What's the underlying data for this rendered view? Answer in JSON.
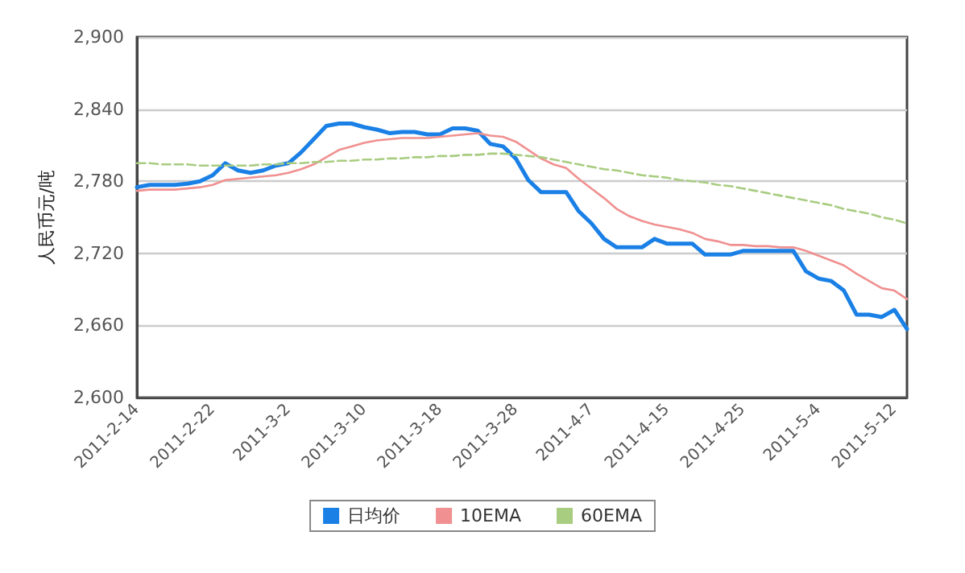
{
  "chart_data": {
    "type": "line",
    "ylabel": "人民币元/吨",
    "categories": [
      "2011-2-14",
      null,
      null,
      null,
      null,
      null,
      "2011-2-22",
      null,
      null,
      null,
      null,
      null,
      "2011-3-2",
      null,
      null,
      null,
      null,
      null,
      "2011-3-10",
      null,
      null,
      null,
      null,
      null,
      "2011-3-18",
      null,
      null,
      null,
      null,
      null,
      "2011-3-28",
      null,
      null,
      null,
      null,
      null,
      "2011-4-7",
      null,
      null,
      null,
      null,
      null,
      "2011-4-15",
      null,
      null,
      null,
      null,
      null,
      "2011-4-25",
      null,
      null,
      null,
      null,
      null,
      "2011-5-4",
      null,
      null,
      null,
      null,
      null,
      "2011-5-12",
      null
    ],
    "series": [
      {
        "name": "日均价",
        "color": "#1a80e6",
        "values": [
          2775,
          2777,
          2777,
          2777,
          2778,
          2780,
          2785,
          2795,
          2789,
          2787,
          2789,
          2793,
          2795,
          2804,
          2815,
          2826,
          2828,
          2828,
          2825,
          2823,
          2820,
          2821,
          2821,
          2819,
          2819,
          2824,
          2824,
          2822,
          2811,
          2809,
          2799,
          2781,
          2771,
          2771,
          2771,
          2755,
          2745,
          2732,
          2725,
          2725,
          2725,
          2732,
          2728,
          2728,
          2728,
          2719,
          2719,
          2719,
          2722,
          2722,
          2722,
          2722,
          2722,
          2705,
          2699,
          2697,
          2689,
          2669,
          2669,
          2667,
          2673,
          2657
        ]
      },
      {
        "name": "10EMA",
        "color": "#f09090",
        "values": [
          2772,
          2773,
          2773,
          2773,
          2774,
          2775,
          2777,
          2781,
          2782,
          2783,
          2784,
          2785,
          2787,
          2790,
          2794,
          2800,
          2806,
          2809,
          2812,
          2814,
          2815,
          2816,
          2816,
          2816,
          2817,
          2818,
          2819,
          2820,
          2818,
          2817,
          2813,
          2806,
          2799,
          2794,
          2791,
          2782,
          2774,
          2766,
          2757,
          2751,
          2747,
          2744,
          2742,
          2740,
          2737,
          2732,
          2730,
          2727,
          2727,
          2726,
          2726,
          2725,
          2725,
          2722,
          2718,
          2714,
          2710,
          2703,
          2697,
          2691,
          2689,
          2682
        ]
      },
      {
        "name": "60EMA",
        "color": "#a8cc80",
        "line_style": "dashed",
        "values": [
          2795,
          2795,
          2794,
          2794,
          2794,
          2793,
          2793,
          2793,
          2793,
          2793,
          2794,
          2794,
          2795,
          2795,
          2796,
          2796,
          2797,
          2797,
          2798,
          2798,
          2799,
          2799,
          2800,
          2800,
          2801,
          2801,
          2802,
          2802,
          2803,
          2803,
          2802,
          2801,
          2800,
          2798,
          2796,
          2794,
          2792,
          2790,
          2789,
          2787,
          2785,
          2784,
          2783,
          2781,
          2780,
          2779,
          2777,
          2776,
          2774,
          2772,
          2770,
          2768,
          2766,
          2764,
          2762,
          2760,
          2757,
          2755,
          2753,
          2750,
          2748,
          2745
        ]
      }
    ],
    "ylim": [
      2600,
      2900
    ],
    "yticks": [
      {
        "value": 2600,
        "label": "2,600"
      },
      {
        "value": 2660,
        "label": "2,660"
      },
      {
        "value": 2720,
        "label": "2,720"
      },
      {
        "value": 2780,
        "label": "2,780"
      },
      {
        "value": 2840,
        "label": "2,840"
      },
      {
        "value": 2900,
        "label": "2,900"
      }
    ],
    "grid": "y",
    "legend": "bottom",
    "marker": "none",
    "line_style": "solid"
  }
}
